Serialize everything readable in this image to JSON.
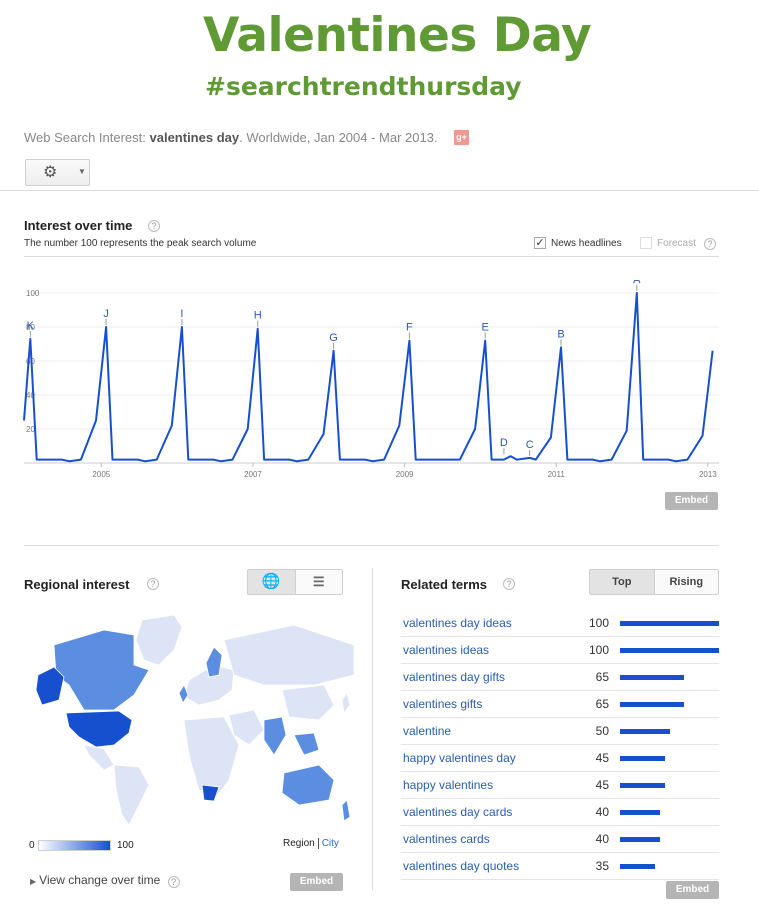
{
  "header": {
    "title": "Valentines Day",
    "hashtag": "#searchtrendthursday"
  },
  "search_info": {
    "prefix": "Web Search Interest: ",
    "term": "valentines day",
    "suffix": ". Worldwide, Jan 2004 - Mar 2013.",
    "share_icon": "google-plus-icon"
  },
  "toolbar": {
    "settings_icon": "gear-icon",
    "dropdown_icon": "caret-down-icon"
  },
  "interest": {
    "title": "Interest over time",
    "help": "?",
    "note": "The number 100 represents the peak search volume",
    "news_headlines_label": "News headlines",
    "news_headlines_checked": true,
    "forecast_label": "Forecast",
    "forecast_checked": false,
    "embed_label": "Embed"
  },
  "chart_data": {
    "type": "line",
    "ylim": [
      0,
      100
    ],
    "y_ticks": [
      20,
      40,
      60,
      80,
      100
    ],
    "x_ticks": [
      "2005",
      "2007",
      "2009",
      "2011",
      "2013"
    ],
    "series": [
      {
        "color": "#1750cf",
        "points": [
          [
            2004.0,
            25
          ],
          [
            2004.083,
            73
          ],
          [
            2004.167,
            2
          ],
          [
            2004.5,
            2
          ],
          [
            2004.6,
            1
          ],
          [
            2004.75,
            2
          ],
          [
            2004.95,
            25
          ],
          [
            2005.083,
            80
          ],
          [
            2005.167,
            2
          ],
          [
            2005.5,
            2
          ],
          [
            2005.6,
            1
          ],
          [
            2005.75,
            2
          ],
          [
            2005.95,
            22
          ],
          [
            2006.083,
            80
          ],
          [
            2006.167,
            2
          ],
          [
            2006.5,
            2
          ],
          [
            2006.6,
            1
          ],
          [
            2006.75,
            2
          ],
          [
            2006.95,
            20
          ],
          [
            2007.083,
            79
          ],
          [
            2007.167,
            2
          ],
          [
            2007.5,
            2
          ],
          [
            2007.6,
            1
          ],
          [
            2007.75,
            2
          ],
          [
            2007.95,
            17
          ],
          [
            2008.083,
            66
          ],
          [
            2008.167,
            2
          ],
          [
            2008.5,
            2
          ],
          [
            2008.6,
            1
          ],
          [
            2008.75,
            2
          ],
          [
            2008.95,
            22
          ],
          [
            2009.083,
            72
          ],
          [
            2009.167,
            2
          ],
          [
            2009.5,
            2
          ],
          [
            2009.6,
            2
          ],
          [
            2009.75,
            2
          ],
          [
            2009.95,
            20
          ],
          [
            2010.083,
            72
          ],
          [
            2010.167,
            2
          ],
          [
            2010.33,
            2
          ],
          [
            2010.42,
            4
          ],
          [
            2010.5,
            2
          ],
          [
            2010.67,
            3
          ],
          [
            2010.75,
            2
          ],
          [
            2010.95,
            15
          ],
          [
            2011.083,
            68
          ],
          [
            2011.167,
            2
          ],
          [
            2011.5,
            2
          ],
          [
            2011.6,
            1
          ],
          [
            2011.75,
            2
          ],
          [
            2011.95,
            19
          ],
          [
            2012.083,
            100
          ],
          [
            2012.167,
            2
          ],
          [
            2012.5,
            2
          ],
          [
            2012.6,
            1
          ],
          [
            2012.75,
            2
          ],
          [
            2012.95,
            16
          ],
          [
            2013.083,
            66
          ]
        ]
      }
    ],
    "annotations": [
      {
        "label": "K",
        "x": 2004.083,
        "y": 73
      },
      {
        "label": "J",
        "x": 2005.083,
        "y": 80
      },
      {
        "label": "I",
        "x": 2006.083,
        "y": 80
      },
      {
        "label": "H",
        "x": 2007.083,
        "y": 79
      },
      {
        "label": "G",
        "x": 2008.083,
        "y": 66
      },
      {
        "label": "F",
        "x": 2009.083,
        "y": 72
      },
      {
        "label": "E",
        "x": 2010.083,
        "y": 72
      },
      {
        "label": "D",
        "x": 2010.33,
        "y": 4
      },
      {
        "label": "C",
        "x": 2010.67,
        "y": 3
      },
      {
        "label": "B",
        "x": 2011.083,
        "y": 68
      },
      {
        "label": "A",
        "x": 2012.083,
        "y": 100
      }
    ],
    "grid": true
  },
  "regional": {
    "title": "Regional interest",
    "help": "?",
    "map_view_icon": "globe-icon",
    "list_view_icon": "list-icon",
    "legend_min": "0",
    "legend_max": "100",
    "region_label": "Region",
    "city_label": "City",
    "view_change_label": "View change over time",
    "embed_label": "Embed",
    "colors": {
      "high": "#1750cf",
      "mid": "#5b8ee0",
      "low": "#dde4f5"
    }
  },
  "related": {
    "title": "Related terms",
    "help": "?",
    "tab_top": "Top",
    "tab_rising": "Rising",
    "embed_label": "Embed",
    "terms": [
      {
        "term": "valentines day ideas",
        "value": 100
      },
      {
        "term": "valentines ideas",
        "value": 100
      },
      {
        "term": "valentines day gifts",
        "value": 65
      },
      {
        "term": "valentines gifts",
        "value": 65
      },
      {
        "term": "valentine",
        "value": 50
      },
      {
        "term": "happy valentines day",
        "value": 45
      },
      {
        "term": "happy valentines",
        "value": 45
      },
      {
        "term": "valentines day cards",
        "value": 40
      },
      {
        "term": "valentines cards",
        "value": 40
      },
      {
        "term": "valentines day quotes",
        "value": 35
      }
    ]
  }
}
